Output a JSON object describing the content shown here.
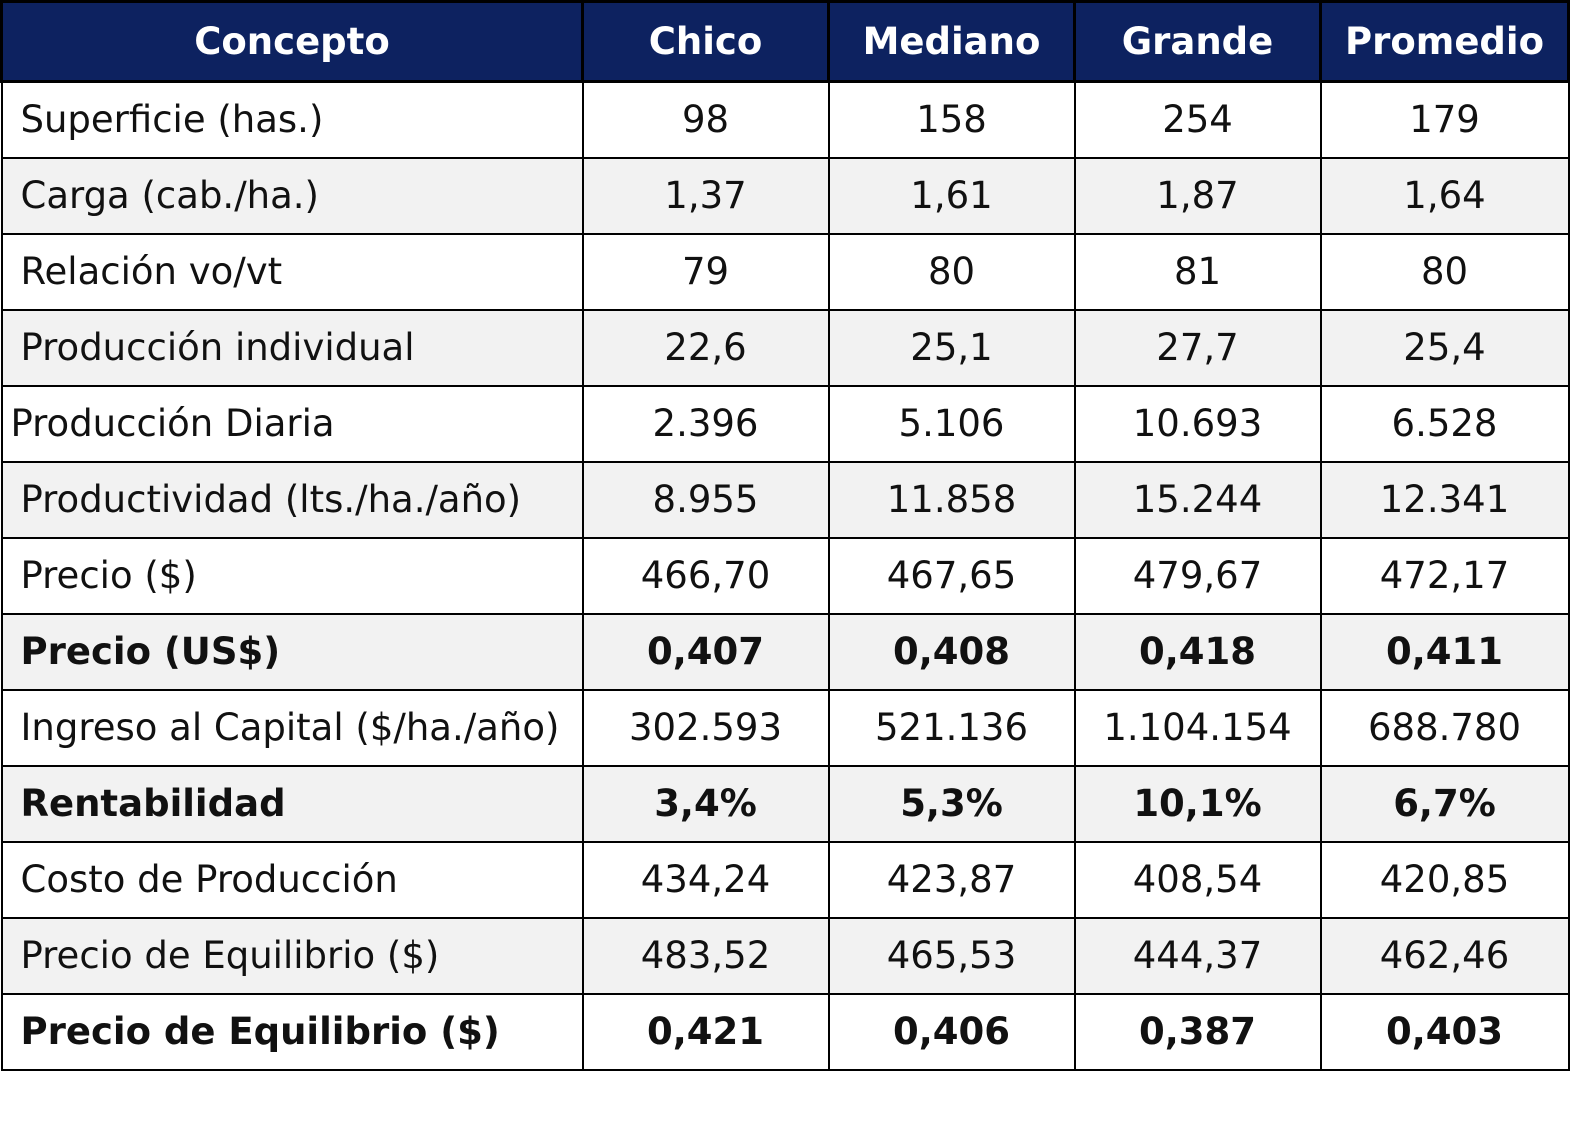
{
  "table": {
    "headers": [
      "Concepto",
      "Chico",
      "Mediano",
      "Grande",
      "Promedio"
    ],
    "rows": [
      {
        "label": "Superficie (has.)",
        "values": [
          "98",
          "158",
          "254",
          "179"
        ],
        "bold": false
      },
      {
        "label": "Carga (cab./ha.)",
        "values": [
          "1,37",
          "1,61",
          "1,87",
          "1,64"
        ],
        "bold": false
      },
      {
        "label": "Relación vo/vt",
        "values": [
          "79",
          "80",
          "81",
          "80"
        ],
        "bold": false
      },
      {
        "label": "Producción individual",
        "values": [
          "22,6",
          "25,1",
          "27,7",
          "25,4"
        ],
        "bold": false
      },
      {
        "label": "Producción Diaria",
        "values": [
          "2.396",
          "5.106",
          "10.693",
          "6.528"
        ],
        "bold": false
      },
      {
        "label": "Productividad (lts./ha./año)",
        "values": [
          "8.955",
          "11.858",
          "15.244",
          "12.341"
        ],
        "bold": false
      },
      {
        "label": "Precio ($)",
        "values": [
          "466,70",
          "467,65",
          "479,67",
          "472,17"
        ],
        "bold": false
      },
      {
        "label": "Precio (US$)",
        "values": [
          "0,407",
          "0,408",
          "0,418",
          "0,411"
        ],
        "bold": true
      },
      {
        "label": "Ingreso al Capital ($/ha./año)",
        "values": [
          "302.593",
          "521.136",
          "1.104.154",
          "688.780"
        ],
        "bold": false
      },
      {
        "label": "Rentabilidad",
        "values": [
          "3,4%",
          "5,3%",
          "10,1%",
          "6,7%"
        ],
        "bold": true
      },
      {
        "label": "Costo de Producción",
        "values": [
          "434,24",
          "423,87",
          "408,54",
          "420,85"
        ],
        "bold": false
      },
      {
        "label": "Precio de Equilibrio ($)",
        "values": [
          "483,52",
          "465,53",
          "444,37",
          "462,46"
        ],
        "bold": false
      },
      {
        "label": "Precio de Equilibrio ($)",
        "values": [
          "0,421",
          "0,406",
          "0,387",
          "0,403"
        ],
        "bold": true
      }
    ]
  },
  "colors": {
    "header_bg": "#0d2260",
    "header_text": "#ffffff",
    "stripe": "#f2f2f2"
  }
}
